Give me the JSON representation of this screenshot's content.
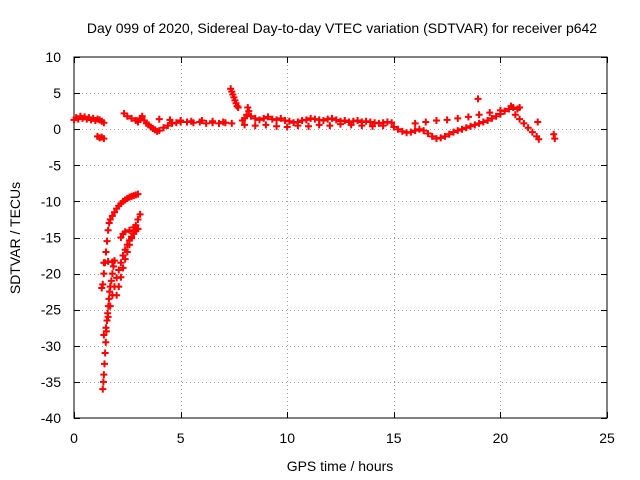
{
  "chart_data": {
    "type": "scatter",
    "title": "Day 099 of 2020, Sidereal Day-to-day VTEC variation (SDTVAR) for receiver p642",
    "xlabel": "GPS time / hours",
    "ylabel": "SDTVAR / TECUs",
    "xlim": [
      0,
      25
    ],
    "ylim": [
      -40,
      10
    ],
    "x_ticks": [
      0,
      5,
      10,
      15,
      20,
      25
    ],
    "x_tick_labels": [
      "0",
      "5",
      "10",
      "15",
      "20",
      "25"
    ],
    "y_ticks": [
      -40,
      -35,
      -30,
      -25,
      -20,
      -15,
      -10,
      -5,
      0,
      5,
      10
    ],
    "y_tick_labels": [
      "-40",
      "-35",
      "-30",
      "-25",
      "-20",
      "-15",
      "-10",
      "-5",
      "0",
      "5",
      "10"
    ],
    "grid": true,
    "marker": "+",
    "series_color": "#ff0000",
    "series": [
      {
        "name": "SDTVAR",
        "points": [
          [
            0.0,
            1.3
          ],
          [
            0.1,
            1.6
          ],
          [
            0.2,
            1.4
          ],
          [
            0.3,
            1.8
          ],
          [
            0.4,
            1.5
          ],
          [
            0.5,
            1.7
          ],
          [
            0.6,
            1.4
          ],
          [
            0.7,
            1.6
          ],
          [
            0.8,
            1.3
          ],
          [
            0.9,
            1.5
          ],
          [
            1.0,
            1.2
          ],
          [
            1.1,
            1.4
          ],
          [
            1.2,
            1.3
          ],
          [
            1.3,
            1.1
          ],
          [
            1.4,
            0.9
          ],
          [
            1.1,
            -1.0
          ],
          [
            1.2,
            -1.2
          ],
          [
            1.3,
            -1.1
          ],
          [
            1.4,
            -1.3
          ],
          [
            1.3,
            -22.0
          ],
          [
            1.35,
            -21.5
          ],
          [
            1.4,
            -20.0
          ],
          [
            1.45,
            -18.5
          ],
          [
            1.5,
            -17.0
          ],
          [
            1.55,
            -15.5
          ],
          [
            1.6,
            -14.0
          ],
          [
            1.65,
            -13.0
          ],
          [
            1.7,
            -12.5
          ],
          [
            1.8,
            -12.0
          ],
          [
            1.9,
            -11.5
          ],
          [
            2.0,
            -11.0
          ],
          [
            2.1,
            -10.6
          ],
          [
            2.2,
            -10.3
          ],
          [
            2.3,
            -10.0
          ],
          [
            2.4,
            -9.8
          ],
          [
            2.5,
            -9.6
          ],
          [
            2.6,
            -9.4
          ],
          [
            2.7,
            -9.3
          ],
          [
            2.8,
            -9.2
          ],
          [
            2.9,
            -9.1
          ],
          [
            3.0,
            -9.0
          ],
          [
            1.4,
            -18.5
          ],
          [
            1.6,
            -18.3
          ],
          [
            1.8,
            -18.4
          ],
          [
            1.35,
            -36.0
          ],
          [
            1.38,
            -35.0
          ],
          [
            1.4,
            -34.0
          ],
          [
            1.43,
            -32.5
          ],
          [
            1.46,
            -31.0
          ],
          [
            1.49,
            -29.5
          ],
          [
            1.52,
            -28.0
          ],
          [
            1.55,
            -26.5
          ],
          [
            1.58,
            -25.5
          ],
          [
            1.61,
            -24.5
          ],
          [
            1.64,
            -23.5
          ],
          [
            1.67,
            -22.5
          ],
          [
            1.7,
            -21.8
          ],
          [
            1.75,
            -21.0
          ],
          [
            1.8,
            -20.0
          ],
          [
            1.85,
            -19.0
          ],
          [
            1.9,
            -18.2
          ],
          [
            1.4,
            -28.5
          ],
          [
            1.5,
            -27.5
          ],
          [
            1.6,
            -26.0
          ],
          [
            1.7,
            -24.5
          ],
          [
            1.8,
            -23.0
          ],
          [
            1.9,
            -21.8
          ],
          [
            2.0,
            -20.6
          ],
          [
            2.1,
            -19.5
          ],
          [
            2.2,
            -18.5
          ],
          [
            2.3,
            -17.5
          ],
          [
            2.4,
            -16.7
          ],
          [
            2.5,
            -16.0
          ],
          [
            2.6,
            -15.4
          ],
          [
            2.7,
            -14.9
          ],
          [
            2.8,
            -14.5
          ],
          [
            2.9,
            -14.1
          ],
          [
            3.0,
            -13.8
          ],
          [
            2.0,
            -23.0
          ],
          [
            2.1,
            -21.8
          ],
          [
            2.2,
            -20.5
          ],
          [
            2.3,
            -19.2
          ],
          [
            2.4,
            -18.0
          ],
          [
            2.5,
            -17.0
          ],
          [
            2.6,
            -16.0
          ],
          [
            2.7,
            -15.1
          ],
          [
            2.8,
            -14.2
          ],
          [
            2.9,
            -13.3
          ],
          [
            3.0,
            -12.5
          ],
          [
            3.1,
            -11.8
          ],
          [
            2.2,
            -15.0
          ],
          [
            2.3,
            -14.5
          ],
          [
            2.4,
            -14.2
          ],
          [
            2.6,
            -14.0
          ],
          [
            2.8,
            -13.6
          ],
          [
            2.35,
            2.2
          ],
          [
            2.5,
            1.8
          ],
          [
            2.7,
            1.5
          ],
          [
            2.9,
            1.2
          ],
          [
            3.0,
            1.0
          ],
          [
            3.1,
            1.5
          ],
          [
            3.2,
            1.8
          ],
          [
            3.3,
            1.2
          ],
          [
            3.4,
            0.8
          ],
          [
            3.5,
            0.6
          ],
          [
            3.6,
            0.3
          ],
          [
            3.7,
            0.1
          ],
          [
            3.8,
            -0.1
          ],
          [
            3.9,
            -0.3
          ],
          [
            4.0,
            -0.2
          ],
          [
            4.2,
            0.2
          ],
          [
            4.4,
            0.5
          ],
          [
            4.6,
            0.8
          ],
          [
            4.8,
            0.9
          ],
          [
            5.0,
            1.0
          ],
          [
            5.3,
            1.0
          ],
          [
            5.6,
            0.9
          ],
          [
            5.9,
            1.0
          ],
          [
            6.2,
            0.8
          ],
          [
            6.5,
            0.9
          ],
          [
            6.8,
            0.8
          ],
          [
            7.1,
            0.9
          ],
          [
            7.4,
            0.8
          ],
          [
            4.0,
            1.4
          ],
          [
            4.5,
            1.3
          ],
          [
            5.0,
            1.2
          ],
          [
            5.5,
            1.1
          ],
          [
            6.0,
            1.2
          ],
          [
            6.5,
            1.1
          ],
          [
            7.0,
            1.0
          ],
          [
            7.35,
            5.6
          ],
          [
            7.4,
            5.2
          ],
          [
            7.45,
            4.8
          ],
          [
            7.5,
            4.4
          ],
          [
            7.55,
            4.0
          ],
          [
            7.6,
            3.6
          ],
          [
            7.65,
            3.2
          ],
          [
            7.7,
            3.0
          ],
          [
            7.9,
            1.2
          ],
          [
            8.0,
            1.5
          ],
          [
            8.1,
            2.0
          ],
          [
            8.15,
            3.0
          ],
          [
            8.2,
            2.5
          ],
          [
            8.3,
            1.8
          ],
          [
            8.5,
            1.5
          ],
          [
            8.7,
            1.3
          ],
          [
            8.9,
            1.5
          ],
          [
            9.1,
            1.7
          ],
          [
            9.3,
            1.4
          ],
          [
            9.5,
            1.3
          ],
          [
            9.7,
            1.5
          ],
          [
            9.9,
            1.2
          ],
          [
            10.1,
            1.1
          ],
          [
            10.3,
            0.9
          ],
          [
            10.5,
            1.0
          ],
          [
            10.7,
            1.2
          ],
          [
            10.9,
            1.3
          ],
          [
            11.1,
            1.5
          ],
          [
            11.3,
            1.4
          ],
          [
            11.5,
            1.3
          ],
          [
            11.7,
            1.2
          ],
          [
            11.9,
            1.4
          ],
          [
            12.1,
            1.5
          ],
          [
            12.3,
            1.3
          ],
          [
            12.5,
            1.1
          ],
          [
            12.7,
            1.2
          ],
          [
            12.9,
            1.0
          ],
          [
            13.1,
            1.1
          ],
          [
            13.3,
            1.2
          ],
          [
            13.5,
            1.0
          ],
          [
            13.7,
            1.1
          ],
          [
            13.9,
            1.0
          ],
          [
            14.1,
            0.9
          ],
          [
            14.3,
            0.8
          ],
          [
            14.5,
            0.9
          ],
          [
            14.7,
            1.0
          ],
          [
            14.9,
            0.9
          ],
          [
            8.0,
            0.6
          ],
          [
            8.5,
            0.5
          ],
          [
            9.0,
            0.6
          ],
          [
            9.5,
            0.4
          ],
          [
            10.0,
            0.3
          ],
          [
            10.5,
            0.5
          ],
          [
            11.0,
            0.4
          ],
          [
            11.5,
            0.6
          ],
          [
            12.0,
            0.5
          ],
          [
            12.5,
            0.7
          ],
          [
            13.0,
            0.6
          ],
          [
            13.5,
            0.5
          ],
          [
            14.0,
            0.4
          ],
          [
            14.5,
            0.5
          ],
          [
            15.0,
            0.3
          ],
          [
            15.2,
            0.0
          ],
          [
            15.4,
            -0.3
          ],
          [
            15.6,
            -0.5
          ],
          [
            15.8,
            -0.4
          ],
          [
            16.0,
            -0.2
          ],
          [
            16.2,
            0.0
          ],
          [
            16.4,
            -0.2
          ],
          [
            16.6,
            -0.6
          ],
          [
            16.8,
            -1.0
          ],
          [
            17.0,
            -1.3
          ],
          [
            17.2,
            -1.2
          ],
          [
            17.4,
            -1.0
          ],
          [
            17.6,
            -0.7
          ],
          [
            17.8,
            -0.4
          ],
          [
            18.0,
            -0.2
          ],
          [
            18.2,
            0.0
          ],
          [
            18.4,
            0.2
          ],
          [
            18.6,
            0.4
          ],
          [
            18.8,
            0.6
          ],
          [
            19.0,
            0.8
          ],
          [
            19.2,
            1.0
          ],
          [
            19.4,
            1.2
          ],
          [
            19.6,
            1.5
          ],
          [
            19.8,
            1.8
          ],
          [
            20.0,
            2.1
          ],
          [
            20.2,
            2.5
          ],
          [
            20.4,
            2.8
          ],
          [
            20.6,
            3.0
          ],
          [
            20.8,
            2.8
          ],
          [
            16.0,
            0.8
          ],
          [
            16.5,
            1.0
          ],
          [
            17.0,
            1.2
          ],
          [
            17.5,
            1.3
          ],
          [
            18.0,
            1.5
          ],
          [
            18.5,
            1.7
          ],
          [
            19.0,
            2.0
          ],
          [
            19.5,
            2.3
          ],
          [
            20.0,
            2.6
          ],
          [
            20.5,
            3.2
          ],
          [
            20.9,
            3.0
          ],
          [
            18.95,
            4.2
          ],
          [
            20.7,
            2.0
          ],
          [
            20.9,
            1.4
          ],
          [
            21.1,
            0.8
          ],
          [
            21.3,
            0.2
          ],
          [
            21.5,
            -0.4
          ],
          [
            21.7,
            -1.0
          ],
          [
            21.8,
            -1.4
          ],
          [
            21.75,
            1.0
          ],
          [
            22.5,
            -0.7
          ],
          [
            22.55,
            -1.3
          ]
        ]
      }
    ]
  }
}
